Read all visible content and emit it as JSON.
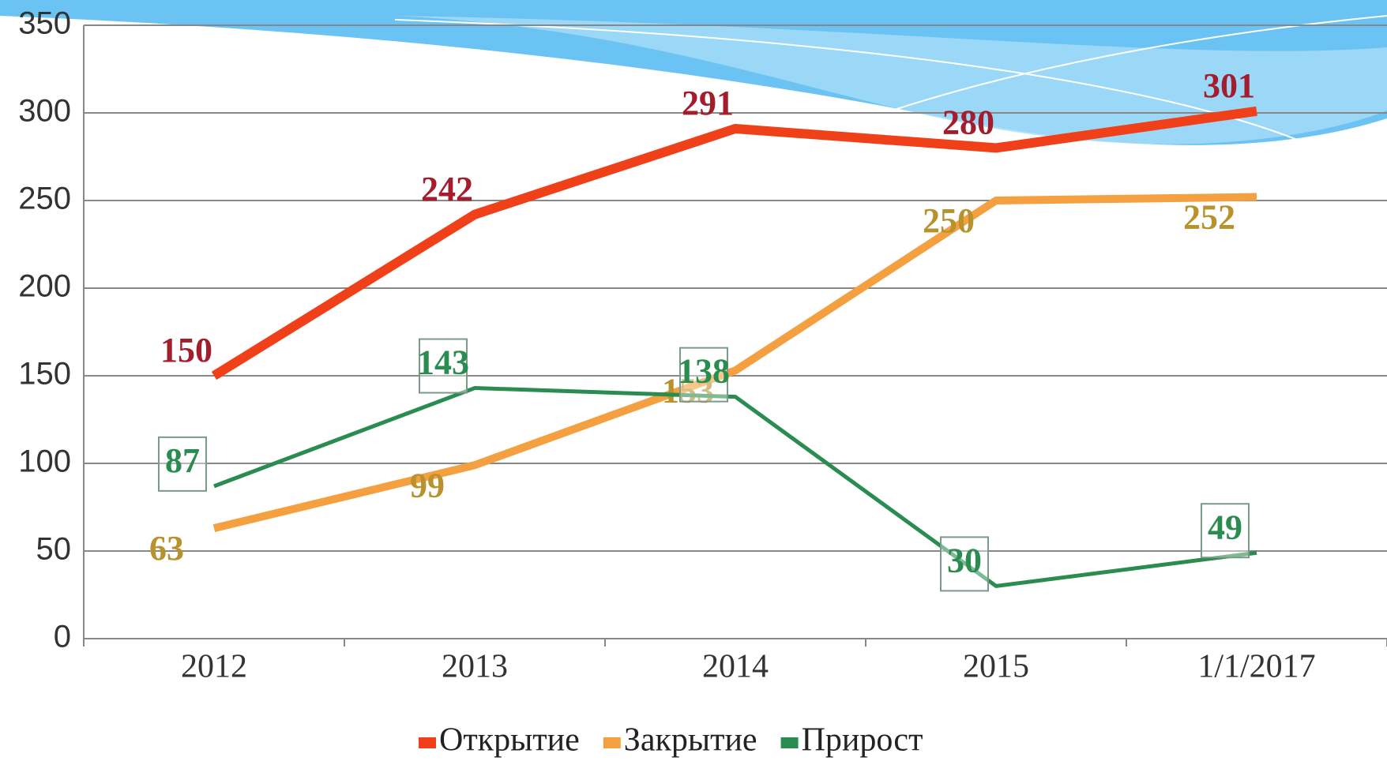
{
  "chart_data": {
    "type": "line",
    "categories": [
      "2012",
      "2013",
      "2014",
      "2015",
      "1/1/2017"
    ],
    "series": [
      {
        "name": "Открытие",
        "color": "#f0401a",
        "label_color": "#a31d2c",
        "values": [
          150,
          242,
          291,
          280,
          301
        ]
      },
      {
        "name": "Закрытие",
        "color": "#f5a040",
        "label_color": "#b8922c",
        "values": [
          63,
          99,
          153,
          250,
          252
        ]
      },
      {
        "name": "Прирост",
        "color": "#2a8c50",
        "label_color": "#2a8c50",
        "values": [
          87,
          143,
          138,
          30,
          49
        ]
      }
    ],
    "ylim": [
      0,
      350
    ],
    "yticks": [
      0,
      50,
      100,
      150,
      200,
      250,
      300,
      350
    ],
    "grid": true,
    "legend": "bottom"
  }
}
